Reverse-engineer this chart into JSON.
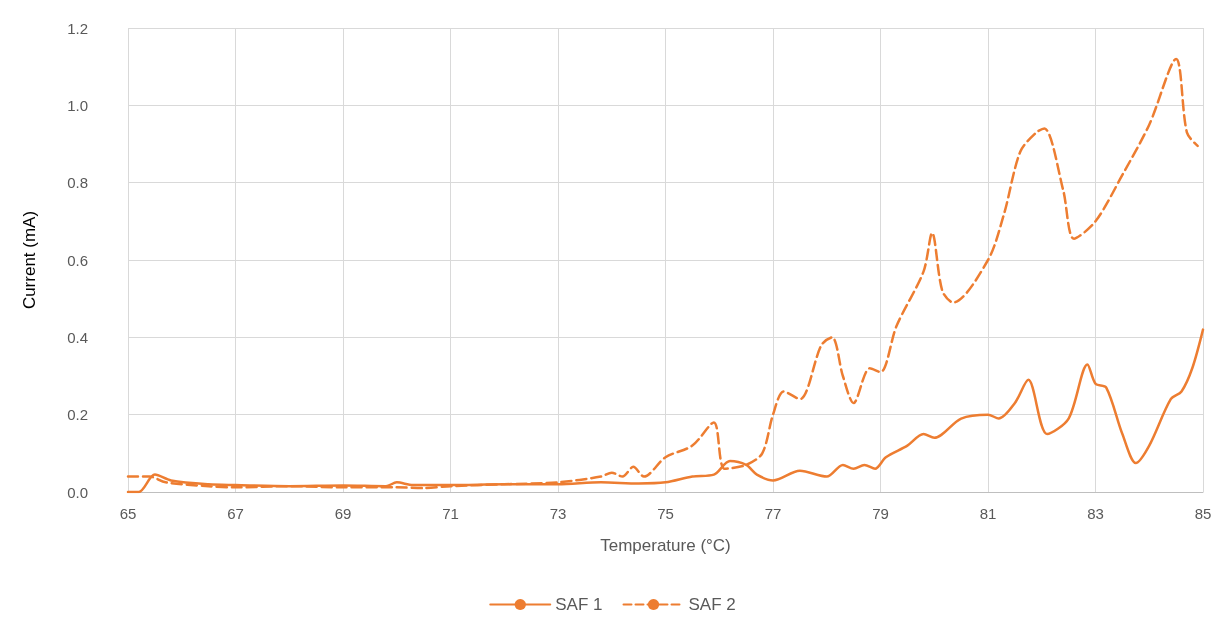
{
  "chart_data": {
    "type": "line",
    "xlabel": "Temperature (°C)",
    "ylabel": "Current (mA)",
    "xlim": [
      65,
      85
    ],
    "xticks": [
      65,
      67,
      69,
      71,
      73,
      75,
      77,
      79,
      81,
      83,
      85
    ],
    "ylim": [
      0,
      1.2
    ],
    "yticks": [
      {
        "value": 0,
        "label": "0.0"
      },
      0.2,
      0.4,
      0.6,
      0.8,
      {
        "value": 1,
        "label": "1.0"
      },
      {
        "value": 1.2,
        "label": "1.2"
      }
    ],
    "grid": true,
    "legend": "bottom",
    "marker": "none",
    "series": [
      {
        "name": "SAF 1",
        "color": "#ed7d31",
        "line_style": "solid",
        "x": [
          65,
          65.2,
          65.5,
          65.8,
          66.5,
          67,
          68,
          69,
          69.8,
          70,
          70.3,
          71,
          72,
          73,
          73.8,
          74.5,
          75,
          75.5,
          75.9,
          76.2,
          76.5,
          76.7,
          77,
          77.5,
          78,
          78.3,
          78.5,
          78.7,
          78.9,
          79.1,
          79.5,
          79.8,
          80,
          80.5,
          81,
          81.2,
          81.5,
          81.75,
          82.1,
          82.5,
          82.85,
          83,
          83.2,
          83.5,
          83.75,
          84,
          84.4,
          84.6,
          84.8,
          85
        ],
        "values": [
          0,
          0,
          0.045,
          0.03,
          0.02,
          0.018,
          0.015,
          0.017,
          0.015,
          0.025,
          0.018,
          0.018,
          0.02,
          0.02,
          0.025,
          0.022,
          0.025,
          0.04,
          0.045,
          0.08,
          0.07,
          0.045,
          0.03,
          0.055,
          0.04,
          0.07,
          0.06,
          0.07,
          0.06,
          0.09,
          0.12,
          0.15,
          0.14,
          0.19,
          0.2,
          0.19,
          0.23,
          0.29,
          0.15,
          0.19,
          0.33,
          0.28,
          0.27,
          0.15,
          0.075,
          0.12,
          0.24,
          0.26,
          0.32,
          0.42
        ]
      },
      {
        "name": "SAF 2",
        "color": "#ed7d31",
        "line_style": "dashed",
        "x": [
          65,
          65.4,
          65.7,
          66.5,
          67,
          68,
          69,
          70,
          70.5,
          71,
          72,
          73,
          73.8,
          74,
          74.2,
          74.4,
          74.6,
          75,
          75.5,
          75.9,
          76.1,
          76.5,
          76.8,
          77,
          77.2,
          77.5,
          77.9,
          78.1,
          78.3,
          78.5,
          78.8,
          79,
          79.3,
          79.8,
          79.96,
          80.15,
          80.35,
          81,
          81.3,
          81.6,
          81.9,
          82.05,
          82.4,
          82.6,
          83,
          83.5,
          84,
          84.5,
          84.7,
          84.9
        ],
        "values": [
          0.04,
          0.04,
          0.025,
          0.015,
          0.012,
          0.015,
          0.012,
          0.012,
          0.01,
          0.015,
          0.02,
          0.025,
          0.04,
          0.05,
          0.04,
          0.065,
          0.04,
          0.09,
          0.12,
          0.18,
          0.06,
          0.07,
          0.1,
          0.2,
          0.26,
          0.24,
          0.38,
          0.4,
          0.3,
          0.23,
          0.32,
          0.31,
          0.43,
          0.57,
          0.67,
          0.52,
          0.49,
          0.6,
          0.72,
          0.88,
          0.93,
          0.94,
          0.78,
          0.655,
          0.7,
          0.82,
          0.95,
          1.12,
          0.93,
          0.895
        ]
      }
    ]
  }
}
